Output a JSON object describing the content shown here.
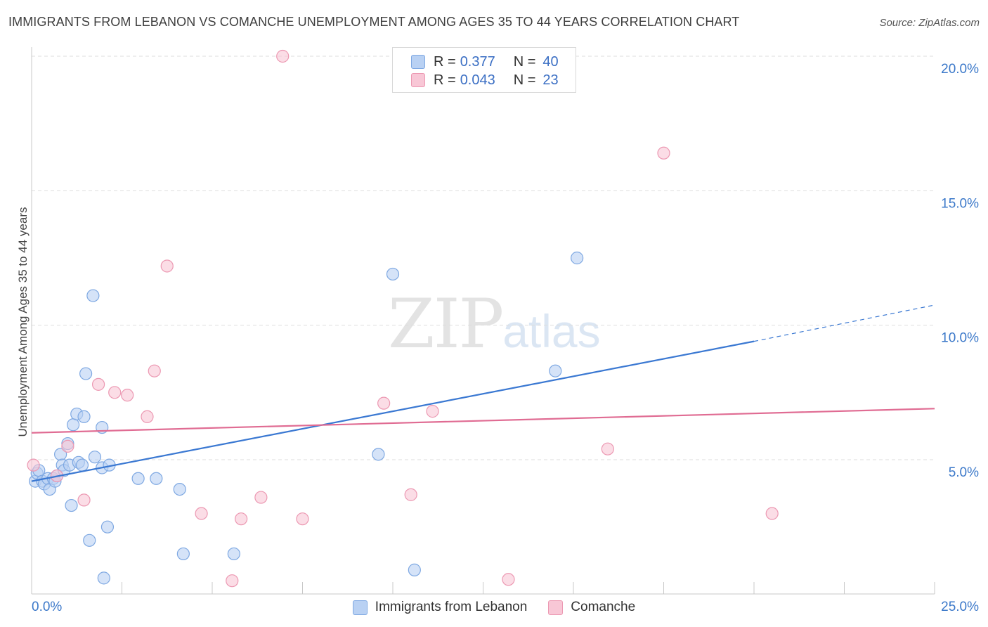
{
  "title": "IMMIGRANTS FROM LEBANON VS COMANCHE UNEMPLOYMENT AMONG AGES 35 TO 44 YEARS CORRELATION CHART",
  "source": "Source: ZipAtlas.com",
  "watermark": {
    "zip": "ZIP",
    "atlas": "atlas"
  },
  "legend_top": {
    "rows": [
      {
        "r_label": "R =",
        "r_value": "0.377",
        "n_label": "N =",
        "n_value": "40"
      },
      {
        "r_label": "R =",
        "r_value": "0.043",
        "n_label": "N =",
        "n_value": "23"
      }
    ]
  },
  "colors": {
    "blue_fill": "#b9d1f3",
    "blue_stroke": "#7ea8e2",
    "blue_line": "#3a78d2",
    "pink_fill": "#f8c7d6",
    "pink_stroke": "#ec98b2",
    "pink_line": "#e06c93",
    "tick_text": "#3b78c9",
    "grid": "#dddddd"
  },
  "chart_data": {
    "type": "scatter",
    "title": "IMMIGRANTS FROM LEBANON VS COMANCHE UNEMPLOYMENT AMONG AGES 35 TO 44 YEARS CORRELATION CHART",
    "xlabel": "",
    "ylabel": "Unemployment Among Ages 35 to 44 years",
    "xlim": [
      0,
      25
    ],
    "ylim": [
      0,
      20.5
    ],
    "x_tick_labels": [
      {
        "value": 0,
        "label": "0.0%"
      },
      {
        "value": 25,
        "label": "25.0%"
      }
    ],
    "x_minor_ticks": [
      2.5,
      5,
      7.5,
      10,
      12.5,
      15,
      17.5,
      20,
      22.5,
      25
    ],
    "y_ticks": [
      {
        "value": 5,
        "label": "5.0%"
      },
      {
        "value": 10,
        "label": "10.0%"
      },
      {
        "value": 15,
        "label": "15.0%"
      },
      {
        "value": 20,
        "label": "20.0%"
      }
    ],
    "grid": true,
    "legend_position": "bottom",
    "series": [
      {
        "name": "Immigrants from Lebanon",
        "color": "blue",
        "points": [
          [
            0.1,
            4.2
          ],
          [
            0.15,
            4.5
          ],
          [
            0.2,
            4.6
          ],
          [
            0.3,
            4.2
          ],
          [
            0.35,
            4.1
          ],
          [
            0.45,
            4.3
          ],
          [
            0.5,
            3.9
          ],
          [
            0.6,
            4.3
          ],
          [
            0.65,
            4.2
          ],
          [
            0.7,
            4.4
          ],
          [
            0.8,
            5.2
          ],
          [
            0.85,
            4.8
          ],
          [
            0.9,
            4.6
          ],
          [
            1.0,
            5.6
          ],
          [
            1.05,
            4.8
          ],
          [
            1.1,
            3.3
          ],
          [
            1.15,
            6.3
          ],
          [
            1.25,
            6.7
          ],
          [
            1.3,
            4.9
          ],
          [
            1.4,
            4.8
          ],
          [
            1.45,
            6.6
          ],
          [
            1.5,
            8.2
          ],
          [
            1.6,
            2.0
          ],
          [
            1.7,
            11.1
          ],
          [
            1.75,
            5.1
          ],
          [
            1.95,
            6.2
          ],
          [
            1.95,
            4.7
          ],
          [
            2.0,
            0.6
          ],
          [
            2.1,
            2.5
          ],
          [
            2.15,
            4.8
          ],
          [
            2.95,
            4.3
          ],
          [
            3.45,
            4.3
          ],
          [
            4.1,
            3.9
          ],
          [
            4.2,
            1.5
          ],
          [
            5.6,
            1.5
          ],
          [
            9.6,
            5.2
          ],
          [
            10.0,
            11.9
          ],
          [
            10.6,
            0.9
          ],
          [
            14.5,
            8.3
          ],
          [
            15.1,
            12.5
          ]
        ],
        "trend": {
          "x0": 0,
          "y0": 4.2,
          "x1": 20,
          "y1": 9.4,
          "dash_to_x": 25,
          "dash_to_y": 10.75
        }
      },
      {
        "name": "Comanche",
        "color": "pink",
        "points": [
          [
            0.05,
            4.8
          ],
          [
            0.7,
            4.4
          ],
          [
            1.0,
            5.5
          ],
          [
            1.45,
            3.5
          ],
          [
            1.85,
            7.8
          ],
          [
            2.3,
            7.5
          ],
          [
            2.65,
            7.4
          ],
          [
            3.2,
            6.6
          ],
          [
            3.4,
            8.3
          ],
          [
            3.75,
            12.2
          ],
          [
            4.7,
            3.0
          ],
          [
            5.55,
            0.5
          ],
          [
            5.8,
            2.8
          ],
          [
            6.35,
            3.6
          ],
          [
            6.95,
            20.0
          ],
          [
            7.5,
            2.8
          ],
          [
            9.75,
            7.1
          ],
          [
            10.5,
            3.7
          ],
          [
            11.1,
            6.8
          ],
          [
            13.2,
            0.55
          ],
          [
            15.95,
            5.4
          ],
          [
            17.5,
            16.4
          ],
          [
            20.5,
            3.0
          ]
        ],
        "trend": {
          "x0": 0,
          "y0": 6.0,
          "x1": 25,
          "y1": 6.9
        }
      }
    ]
  },
  "legend_bottom": {
    "items": [
      {
        "label": "Immigrants from Lebanon"
      },
      {
        "label": "Comanche"
      }
    ]
  }
}
